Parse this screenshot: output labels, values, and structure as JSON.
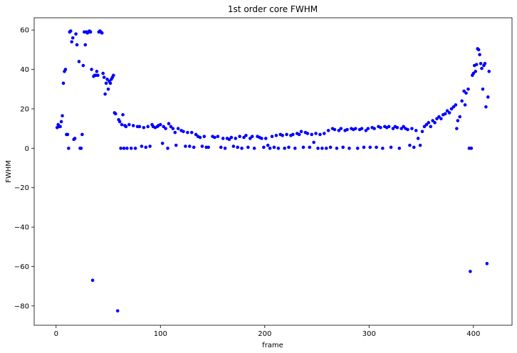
{
  "chart_data": {
    "type": "scatter",
    "title": "1st order core FWHM",
    "xlabel": "frame",
    "ylabel": "FWHM",
    "color": "#0000ff",
    "xlim": [
      -21,
      437
    ],
    "ylim": [
      -89.8,
      66.2
    ],
    "xticks": [
      0,
      100,
      200,
      300,
      400
    ],
    "yticks": [
      {
        "value": -80,
        "label": "−80"
      },
      {
        "value": -60,
        "label": "−60"
      },
      {
        "value": -40,
        "label": "−40"
      },
      {
        "value": -20,
        "label": "−20"
      },
      0,
      20,
      40,
      60
    ],
    "x": [
      1,
      2,
      3,
      4,
      5,
      6,
      7,
      8,
      9,
      10,
      11,
      12,
      13,
      14,
      15,
      16,
      17,
      18,
      19,
      20,
      22,
      23,
      24,
      25,
      26,
      27,
      28,
      29,
      30,
      31,
      32,
      33,
      34,
      35,
      36,
      37,
      38,
      39,
      40,
      41,
      42,
      43,
      44,
      45,
      46,
      47,
      48,
      49,
      50,
      51,
      52,
      53,
      54,
      55,
      56,
      57,
      59,
      60,
      61,
      62,
      63,
      64,
      65,
      66,
      67,
      68,
      70,
      72,
      74,
      76,
      78,
      80,
      82,
      84,
      86,
      88,
      90,
      92,
      93,
      95,
      97,
      98,
      100,
      102,
      103,
      105,
      107,
      108,
      110,
      112,
      114,
      115,
      117,
      120,
      122,
      124,
      126,
      128,
      130,
      132,
      134,
      136,
      138,
      140,
      142,
      144,
      146,
      150,
      152,
      155,
      158,
      160,
      162,
      164,
      166,
      168,
      170,
      172,
      174,
      176,
      178,
      180,
      182,
      184,
      186,
      188,
      190,
      193,
      195,
      197,
      199,
      201,
      203,
      205,
      207,
      209,
      211,
      213,
      215,
      217,
      219,
      221,
      223,
      225,
      227,
      229,
      231,
      233,
      235,
      237,
      239,
      241,
      243,
      245,
      247,
      249,
      251,
      253,
      255,
      257,
      259,
      261,
      263,
      265,
      267,
      269,
      271,
      273,
      275,
      277,
      279,
      281,
      283,
      285,
      287,
      289,
      291,
      293,
      295,
      297,
      299,
      301,
      303,
      305,
      307,
      309,
      311,
      313,
      315,
      317,
      319,
      321,
      323,
      325,
      327,
      329,
      331,
      333,
      335,
      337,
      339,
      341,
      343,
      345,
      347,
      349,
      351,
      353,
      355,
      357,
      359,
      361,
      363,
      365,
      367,
      369,
      371,
      373,
      375,
      377,
      379,
      381,
      383,
      384,
      385,
      387,
      389,
      391,
      392,
      393,
      395,
      396,
      397,
      398,
      399,
      400,
      401,
      402,
      403,
      404,
      405,
      406,
      407,
      408,
      409,
      410,
      411,
      412,
      413,
      414,
      415
    ],
    "y": [
      10.5,
      12,
      11,
      11,
      13.5,
      16.5,
      33,
      39,
      40,
      7,
      7,
      0,
      59,
      59.5,
      54,
      56,
      4.5,
      5,
      58,
      52.5,
      44,
      0,
      0,
      7,
      42,
      59,
      52.5,
      59,
      58.5,
      59,
      59.5,
      59,
      40,
      -67,
      36.5,
      37,
      37,
      39,
      37,
      59,
      59.5,
      59,
      58.5,
      38,
      36,
      27.5,
      33,
      35,
      30,
      34,
      33,
      35,
      36,
      37,
      18,
      17.5,
      -82.5,
      14.5,
      13.5,
      0,
      12,
      17,
      0,
      11.5,
      11,
      0,
      12,
      0,
      11.5,
      0,
      11,
      11,
      1,
      10.5,
      0.5,
      11,
      1,
      12,
      11,
      10.5,
      11,
      11.5,
      12,
      2.5,
      11,
      10,
      0,
      12.5,
      11,
      10,
      8,
      1.5,
      10,
      9,
      8.5,
      1,
      8,
      1,
      8,
      0.5,
      7,
      6,
      5.5,
      1,
      6,
      0.5,
      0.5,
      6,
      5.5,
      6,
      0.5,
      5,
      0,
      5,
      4.5,
      5.5,
      1,
      5,
      0.5,
      6,
      0,
      5.5,
      6.5,
      0.5,
      5,
      6,
      0,
      6,
      5.5,
      5,
      0.5,
      5,
      1.5,
      0,
      6,
      0.5,
      6.5,
      0,
      7,
      6.5,
      0,
      7,
      0.5,
      6.5,
      7,
      0,
      7.5,
      7,
      8.5,
      0.5,
      8,
      7.5,
      0.5,
      7,
      3,
      7.5,
      0,
      7,
      0,
      7.5,
      0,
      9,
      0.5,
      10,
      9.5,
      0,
      9,
      10,
      0.5,
      9,
      9.5,
      0,
      10,
      9.5,
      10,
      0,
      9.5,
      10,
      0.5,
      9,
      10,
      0.5,
      10.5,
      10,
      0.5,
      11,
      10.5,
      0,
      11,
      10.5,
      11,
      0.5,
      10,
      11,
      10.5,
      0,
      10,
      11,
      10,
      9.5,
      1.5,
      10,
      0.5,
      9,
      5,
      1.5,
      8.5,
      11,
      12,
      13,
      11,
      14,
      13,
      15,
      16,
      15,
      17,
      17.5,
      19,
      18,
      20,
      21,
      22,
      10,
      14,
      16,
      24,
      29,
      22,
      28,
      30,
      0,
      -62.5,
      0,
      37,
      38,
      42,
      39,
      42.5,
      50.5,
      50,
      47.5,
      43,
      40.5,
      30,
      42,
      43,
      21,
      -58.5,
      26,
      39
    ]
  }
}
